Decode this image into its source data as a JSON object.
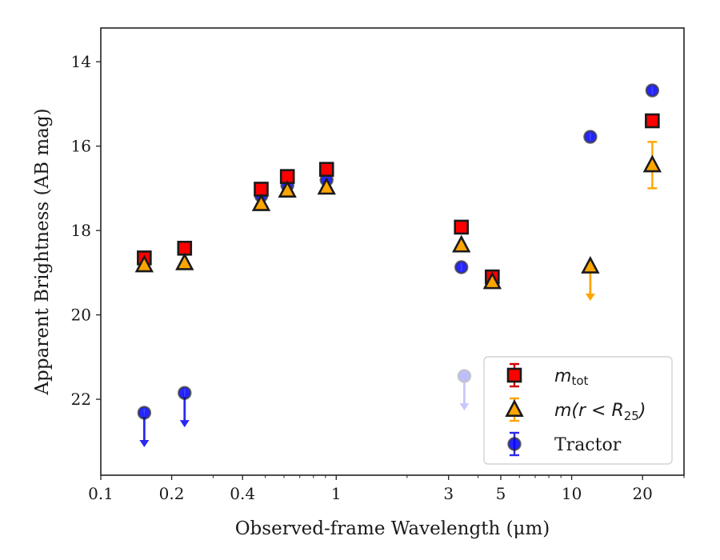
{
  "chart_data": {
    "type": "scatter",
    "title": "",
    "xlabel": "Observed-frame Wavelength (μm)",
    "ylabel": "Apparent Brightness (AB mag)",
    "xscale": "log",
    "xlim": [
      0.1,
      30
    ],
    "ylim": [
      23.8,
      13.2
    ],
    "y_inverted": true,
    "x_ticks": [
      0.1,
      0.2,
      0.4,
      1,
      3,
      5,
      10,
      20
    ],
    "x_tick_labels": [
      "0.1",
      "0.2",
      "0.4",
      "1",
      "3",
      "5",
      "10",
      "20"
    ],
    "y_ticks": [
      14,
      16,
      18,
      20,
      22
    ],
    "y_tick_labels": [
      "14",
      "16",
      "18",
      "20",
      "22"
    ],
    "grid": false,
    "legend": {
      "placement": "lower-right",
      "entries": [
        {
          "series": "m_tot",
          "math_main": "m",
          "math_sub": "tot"
        },
        {
          "series": "m_r25",
          "math_text": "m(r < R",
          "math_sub": "25",
          "math_close": ")"
        },
        {
          "series": "tractor",
          "text": "Tractor"
        }
      ]
    },
    "series": [
      {
        "key": "m_tot",
        "name": "m_tot",
        "marker": "square",
        "color": "#ff0000",
        "edge": "#1a1a1a",
        "points": [
          {
            "x": 0.153,
            "y": 18.65,
            "err": 0.06
          },
          {
            "x": 0.227,
            "y": 18.42,
            "err": 0.05
          },
          {
            "x": 0.48,
            "y": 17.02,
            "err": 0.04
          },
          {
            "x": 0.62,
            "y": 16.72,
            "err": 0.04
          },
          {
            "x": 0.91,
            "y": 16.55,
            "err": 0.04
          },
          {
            "x": 3.4,
            "y": 17.92,
            "err": 0.05
          },
          {
            "x": 4.6,
            "y": 19.1,
            "err": 0.06
          },
          {
            "x": 22.0,
            "y": 15.4,
            "err": 0.04
          }
        ]
      },
      {
        "key": "m_r25",
        "name": "m(r < R25)",
        "marker": "triangle",
        "color": "#ffa500",
        "edge": "#1a1a1a",
        "points": [
          {
            "x": 0.153,
            "y": 18.82,
            "err": 0
          },
          {
            "x": 0.227,
            "y": 18.77,
            "err": 0
          },
          {
            "x": 0.48,
            "y": 17.37,
            "err": 0
          },
          {
            "x": 0.62,
            "y": 17.05,
            "err": 0
          },
          {
            "x": 0.91,
            "y": 16.98,
            "err": 0
          },
          {
            "x": 3.4,
            "y": 18.35,
            "err": 0
          },
          {
            "x": 4.6,
            "y": 19.22,
            "err": 0
          },
          {
            "x": 12.0,
            "y": 18.85,
            "err": 0,
            "upper_limit": true
          },
          {
            "x": 22.0,
            "y": 16.45,
            "err": 0.55
          }
        ]
      },
      {
        "key": "tractor",
        "name": "Tractor",
        "marker": "circle",
        "color": "#0000ff",
        "edge": "#1a1a1a",
        "points": [
          {
            "x": 0.153,
            "y": 22.32,
            "err": 0,
            "upper_limit": true
          },
          {
            "x": 0.227,
            "y": 21.85,
            "err": 0,
            "upper_limit": true
          },
          {
            "x": 0.48,
            "y": 17.18,
            "err": 0
          },
          {
            "x": 0.62,
            "y": 16.93,
            "err": 0
          },
          {
            "x": 0.91,
            "y": 16.8,
            "err": 0
          },
          {
            "x": 3.4,
            "y": 18.87,
            "err": 0
          },
          {
            "x": 4.6,
            "y": 19.1,
            "err": 0
          },
          {
            "x": 12.0,
            "y": 15.78,
            "err": 0
          },
          {
            "x": 22.0,
            "y": 14.68,
            "err": 0
          }
        ]
      }
    ]
  }
}
